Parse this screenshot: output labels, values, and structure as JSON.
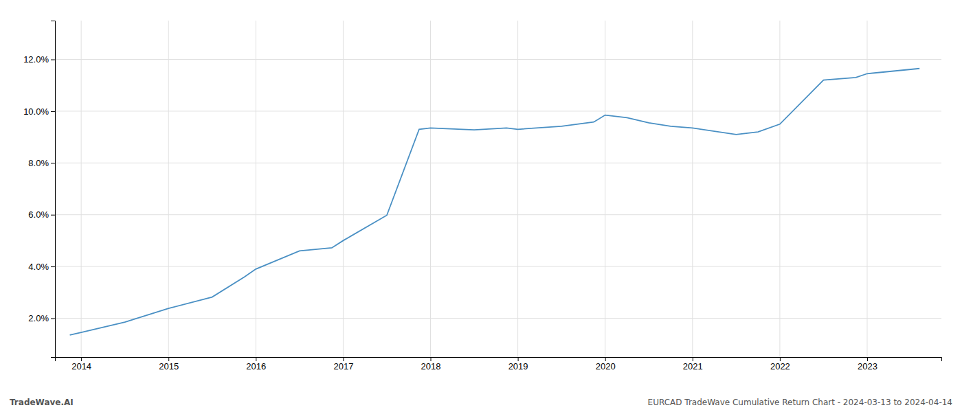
{
  "chart_data": {
    "type": "line",
    "x": [
      2013.87,
      2014.0,
      2014.5,
      2015.0,
      2015.5,
      2015.87,
      2016.0,
      2016.5,
      2016.87,
      2017.0,
      2017.5,
      2017.87,
      2018.0,
      2018.5,
      2018.87,
      2019.0,
      2019.5,
      2019.87,
      2020.0,
      2020.25,
      2020.5,
      2020.75,
      2021.0,
      2021.5,
      2021.75,
      2022.0,
      2022.5,
      2022.87,
      2023.0,
      2023.6
    ],
    "values": [
      1.35,
      1.45,
      1.85,
      2.38,
      2.82,
      3.6,
      3.9,
      4.6,
      4.72,
      5.0,
      5.98,
      9.3,
      9.35,
      9.28,
      9.35,
      9.3,
      9.42,
      9.58,
      9.85,
      9.75,
      9.55,
      9.42,
      9.35,
      9.1,
      9.2,
      9.5,
      11.2,
      11.3,
      11.45,
      11.65
    ],
    "color": "#4a90c4",
    "xlim": [
      2013.7,
      2023.85
    ],
    "ylim": [
      0.5,
      13.5
    ],
    "xticks": [
      2014,
      2015,
      2016,
      2017,
      2018,
      2019,
      2020,
      2021,
      2022,
      2023
    ],
    "yticks": [
      {
        "value": 2.0,
        "label": "2.0%"
      },
      {
        "value": 4.0,
        "label": "4.0%"
      },
      {
        "value": 6.0,
        "label": "6.0%"
      },
      {
        "value": 8.0,
        "label": "8.0%"
      },
      {
        "value": 10.0,
        "label": "10.0%"
      },
      {
        "value": 12.0,
        "label": "12.0%"
      }
    ],
    "grid": true,
    "annotations": [
      "TradeWave.AI",
      "EURCAD TradeWave Cumulative Return Chart - 2024-03-13 to 2024-04-14"
    ]
  }
}
